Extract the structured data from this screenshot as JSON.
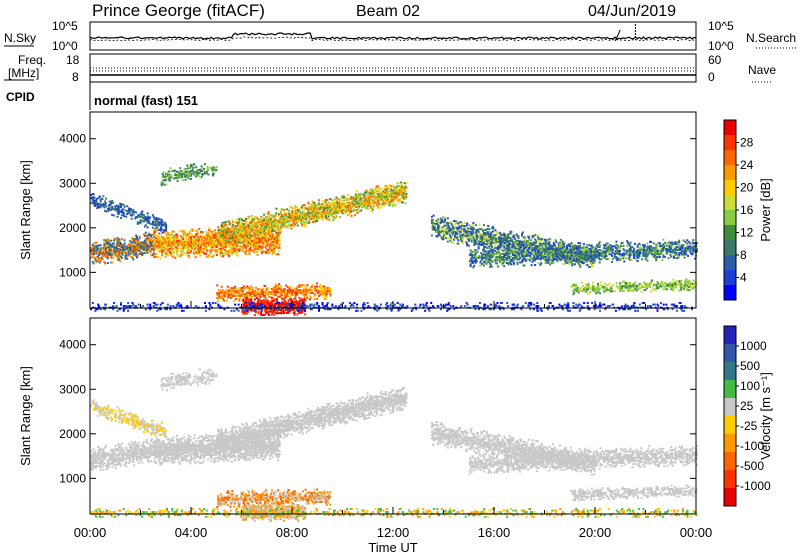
{
  "header": {
    "station": "Prince George (fitACF)",
    "beam": "Beam 02",
    "date": "04/Jun/2019"
  },
  "strip_nsky": {
    "label": "N.Sky",
    "right_label": "N.Search",
    "ticks_left": [
      "10^5",
      "10^0"
    ],
    "ticks_right": [
      "10^5",
      "10^0"
    ]
  },
  "strip_freq": {
    "label_top": "Freq.",
    "label_bottom": "[MHz]",
    "right_label": "Nave",
    "ticks_left": [
      "18",
      "8"
    ],
    "ticks_right": [
      "60",
      "0"
    ]
  },
  "strip_cpid": {
    "label": "CPID",
    "text": "normal (fast) 151"
  },
  "time_axis": {
    "label": "Time UT",
    "ticks": [
      "00:00",
      "04:00",
      "08:00",
      "12:00",
      "16:00",
      "20:00",
      "00:00"
    ]
  },
  "chart_data": [
    {
      "type": "heatmap",
      "name": "power",
      "ylabel": "Slant Range [km]",
      "yticks": [
        1000,
        2000,
        3000,
        4000
      ],
      "ylim": [
        200,
        4600
      ],
      "colorbar": {
        "label": "Power [dB]",
        "ticks": [
          "28",
          "24",
          "20",
          "16",
          "12",
          "8",
          "4"
        ],
        "colors": [
          "#e60000",
          "#ff3300",
          "#ff6600",
          "#ff9900",
          "#ffcc00",
          "#ccdd33",
          "#88cc44",
          "#3c8c3c",
          "#3a7a6a",
          "#2a5ea8",
          "#1d3fd8",
          "#0000ff"
        ]
      }
    },
    {
      "type": "heatmap",
      "name": "velocity",
      "ylabel": "Slant Range [km]",
      "yticks": [
        1000,
        2000,
        3000,
        4000
      ],
      "ylim": [
        200,
        4600
      ],
      "colorbar": {
        "label": "Velocity [m s⁻¹]",
        "ticks": [
          "1000",
          "500",
          "100",
          "25",
          "-25",
          "-100",
          "-500",
          "-1000"
        ],
        "colors": [
          "#2222bb",
          "#3355aa",
          "#337788",
          "#44bb44",
          "#c8c8c8",
          "#ffcc00",
          "#ff9900",
          "#ff6600",
          "#ff3300",
          "#e60000"
        ]
      }
    }
  ]
}
